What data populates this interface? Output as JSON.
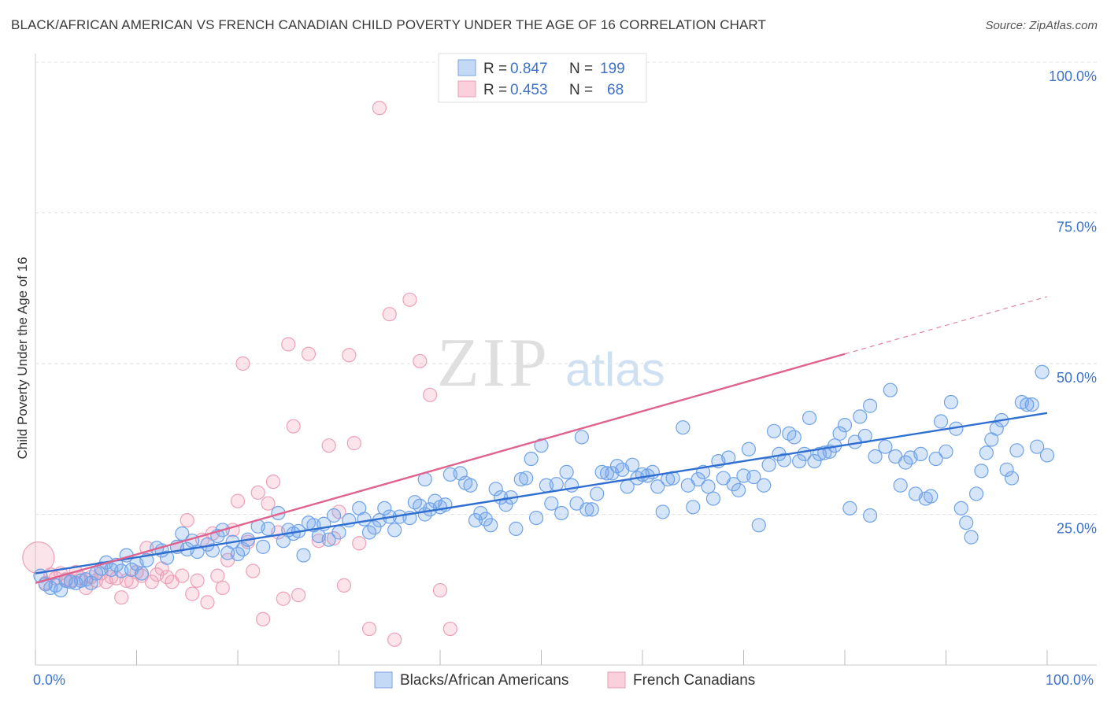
{
  "title": "BLACK/AFRICAN AMERICAN VS FRENCH CANADIAN CHILD POVERTY UNDER THE AGE OF 16 CORRELATION CHART",
  "source": "Source: ZipAtlas.com",
  "watermark": {
    "zip": "ZIP",
    "atlas": "atlas"
  },
  "colors": {
    "blue": "#6fa3e8",
    "blue_line": "#2f6fd1",
    "pink": "#f0a0b8",
    "pink_line": "#e0638f",
    "tick_text": "#3d72c9"
  },
  "legend": {
    "r_label": "R =",
    "n_label": "N =",
    "series": [
      {
        "r": "0.847",
        "n": "199"
      },
      {
        "r": "0.453",
        "n": "68"
      }
    ]
  },
  "bottom_legend": [
    "Blacks/African Americans",
    "French Canadians"
  ],
  "chart_data": {
    "type": "scatter",
    "title": "BLACK/AFRICAN AMERICAN VS FRENCH CANADIAN CHILD POVERTY UNDER THE AGE OF 16 CORRELATION CHART",
    "xlabel": "",
    "ylabel": "Child Poverty Under the Age of 16",
    "x_tick_labels": [
      "0.0%",
      "100.0%"
    ],
    "y_tick_labels": [
      "25.0%",
      "50.0%",
      "75.0%",
      "100.0%"
    ],
    "y_ticks": [
      25,
      50,
      75,
      100
    ],
    "xlim": [
      0,
      100
    ],
    "ylim": [
      0,
      100
    ],
    "series": [
      {
        "name": "Blacks/African Americans",
        "color": "blue",
        "trend": {
          "x0": 0,
          "y0": 15.2,
          "x1": 100,
          "y1": 41.8,
          "dashed_to": 100
        },
        "points": [
          [
            0.5,
            14.8
          ],
          [
            1,
            13.4
          ],
          [
            1.5,
            12.8
          ],
          [
            2,
            13.2
          ],
          [
            2.5,
            12.4
          ],
          [
            3,
            14
          ],
          [
            3.5,
            13.8
          ],
          [
            4,
            13.6
          ],
          [
            4.5,
            14
          ],
          [
            5,
            14.2
          ],
          [
            5.5,
            13.6
          ],
          [
            6,
            15.2
          ],
          [
            6.5,
            16
          ],
          [
            7,
            17
          ],
          [
            7.5,
            15.8
          ],
          [
            8,
            16.6
          ],
          [
            8.5,
            15.6
          ],
          [
            9,
            18.2
          ],
          [
            9.5,
            15.8
          ],
          [
            10,
            16.8
          ],
          [
            10.5,
            15.2
          ],
          [
            11,
            17.4
          ],
          [
            12,
            19.4
          ],
          [
            12.5,
            19
          ],
          [
            13,
            17.8
          ],
          [
            14,
            19.6
          ],
          [
            14.5,
            21.8
          ],
          [
            15,
            19.2
          ],
          [
            15.5,
            20.6
          ],
          [
            16,
            18.8
          ],
          [
            17,
            20
          ],
          [
            17.5,
            19
          ],
          [
            18,
            21.4
          ],
          [
            18.5,
            22.4
          ],
          [
            19,
            18.6
          ],
          [
            19.5,
            20.4
          ],
          [
            20,
            18.4
          ],
          [
            20.5,
            19.2
          ],
          [
            21,
            20.8
          ],
          [
            22,
            23
          ],
          [
            22.5,
            19.6
          ],
          [
            23,
            22.6
          ],
          [
            24,
            25.2
          ],
          [
            24.5,
            20.6
          ],
          [
            25,
            22.4
          ],
          [
            25.5,
            21.8
          ],
          [
            26,
            22.2
          ],
          [
            26.5,
            18.2
          ],
          [
            27,
            23.6
          ],
          [
            27.5,
            23.2
          ],
          [
            28,
            21.4
          ],
          [
            28.5,
            23.4
          ],
          [
            29,
            20.8
          ],
          [
            29.5,
            24.8
          ],
          [
            30,
            22
          ],
          [
            31,
            24
          ],
          [
            32,
            26
          ],
          [
            32.5,
            24.2
          ],
          [
            33,
            22
          ],
          [
            33.5,
            22.8
          ],
          [
            34,
            24
          ],
          [
            34.5,
            26
          ],
          [
            35,
            24.6
          ],
          [
            35.5,
            22.4
          ],
          [
            36,
            24.6
          ],
          [
            37,
            24.4
          ],
          [
            37.5,
            27
          ],
          [
            38,
            26.4
          ],
          [
            38.5,
            25
          ],
          [
            38.5,
            30.8
          ],
          [
            39,
            25.8
          ],
          [
            39.5,
            27.2
          ],
          [
            40,
            26.2
          ],
          [
            40.5,
            26.6
          ],
          [
            41,
            31.6
          ],
          [
            42,
            31.8
          ],
          [
            42.5,
            30.2
          ],
          [
            43,
            29.8
          ],
          [
            43.5,
            24
          ],
          [
            44,
            25.2
          ],
          [
            44.5,
            24.2
          ],
          [
            45,
            23.2
          ],
          [
            45.5,
            29.2
          ],
          [
            46,
            27.8
          ],
          [
            46.5,
            26.6
          ],
          [
            47,
            27.8
          ],
          [
            47.5,
            22.6
          ],
          [
            48,
            30.8
          ],
          [
            48.5,
            31
          ],
          [
            49,
            34.2
          ],
          [
            49.5,
            24.4
          ],
          [
            50,
            36.4
          ],
          [
            50.5,
            29.8
          ],
          [
            51,
            26.8
          ],
          [
            51.5,
            30
          ],
          [
            52,
            25.2
          ],
          [
            52.5,
            32
          ],
          [
            53,
            29.8
          ],
          [
            53.5,
            26.8
          ],
          [
            54,
            37.8
          ],
          [
            54.5,
            25.8
          ],
          [
            55,
            25.8
          ],
          [
            55.5,
            28.4
          ],
          [
            56,
            32
          ],
          [
            56.5,
            31.8
          ],
          [
            57,
            31.8
          ],
          [
            57.5,
            33
          ],
          [
            58,
            32.4
          ],
          [
            58.5,
            29.6
          ],
          [
            59,
            33.2
          ],
          [
            59.5,
            31
          ],
          [
            60,
            31.6
          ],
          [
            60.5,
            31.4
          ],
          [
            61,
            32
          ],
          [
            61.5,
            29.6
          ],
          [
            62,
            25.4
          ],
          [
            62.5,
            30.8
          ],
          [
            63,
            31
          ],
          [
            64,
            39.4
          ],
          [
            64.5,
            29.8
          ],
          [
            65,
            26.2
          ],
          [
            65.5,
            30.8
          ],
          [
            66,
            32
          ],
          [
            66.5,
            29.6
          ],
          [
            67,
            27.6
          ],
          [
            67.5,
            33.8
          ],
          [
            68,
            31
          ],
          [
            68.5,
            34.4
          ],
          [
            69,
            30
          ],
          [
            69.5,
            29
          ],
          [
            70,
            31.4
          ],
          [
            70.5,
            35.8
          ],
          [
            71,
            31.2
          ],
          [
            71.5,
            23.2
          ],
          [
            72,
            29.8
          ],
          [
            72.5,
            33.2
          ],
          [
            73,
            38.8
          ],
          [
            73.5,
            35
          ],
          [
            74,
            34
          ],
          [
            74.5,
            38.4
          ],
          [
            75,
            37.8
          ],
          [
            75.5,
            33.8
          ],
          [
            76,
            35
          ],
          [
            76.5,
            41
          ],
          [
            77,
            33.8
          ],
          [
            77.5,
            35
          ],
          [
            78,
            35.2
          ],
          [
            78.5,
            35.4
          ],
          [
            79,
            36.4
          ],
          [
            79.5,
            38.4
          ],
          [
            80,
            39.8
          ],
          [
            80.5,
            26
          ],
          [
            81,
            37
          ],
          [
            81.5,
            41.2
          ],
          [
            82,
            38
          ],
          [
            82.5,
            43
          ],
          [
            82.5,
            24.8
          ],
          [
            83,
            34.6
          ],
          [
            84,
            36.2
          ],
          [
            84.5,
            45.6
          ],
          [
            85,
            34.6
          ],
          [
            85.5,
            29.8
          ],
          [
            86,
            33.6
          ],
          [
            86.5,
            34.4
          ],
          [
            87,
            28.4
          ],
          [
            87.5,
            35
          ],
          [
            88,
            27.6
          ],
          [
            88.5,
            28
          ],
          [
            89,
            34.2
          ],
          [
            89.5,
            40.4
          ],
          [
            90,
            35.4
          ],
          [
            90.5,
            43.6
          ],
          [
            91,
            39.2
          ],
          [
            91.5,
            26
          ],
          [
            92,
            23.6
          ],
          [
            92.5,
            21.2
          ],
          [
            93,
            28.4
          ],
          [
            93.5,
            32.2
          ],
          [
            94,
            35.2
          ],
          [
            94.5,
            37.4
          ],
          [
            95,
            39.2
          ],
          [
            95.5,
            40.6
          ],
          [
            96,
            32.4
          ],
          [
            96.5,
            31
          ],
          [
            97,
            35.6
          ],
          [
            97.5,
            43.6
          ],
          [
            98,
            43.2
          ],
          [
            98.5,
            43.2
          ],
          [
            99,
            36.2
          ],
          [
            99.5,
            48.6
          ],
          [
            100,
            34.8
          ]
        ]
      },
      {
        "name": "French Canadians",
        "color": "pink",
        "trend": {
          "x0": 0,
          "y0": 13.6,
          "x1": 80,
          "y1": 51.6,
          "dashed_to": 100
        },
        "points": [
          [
            0.3,
            17.8
          ],
          [
            1,
            13.6
          ],
          [
            1.5,
            15
          ],
          [
            2,
            14.4
          ],
          [
            2.5,
            15.2
          ],
          [
            3,
            14.2
          ],
          [
            3.5,
            14
          ],
          [
            4,
            15.4
          ],
          [
            4.5,
            14.4
          ],
          [
            5,
            12.8
          ],
          [
            5.5,
            14.6
          ],
          [
            6,
            14
          ],
          [
            6.5,
            15.2
          ],
          [
            7,
            13.8
          ],
          [
            7.5,
            14.6
          ],
          [
            8,
            14.4
          ],
          [
            8.5,
            11.2
          ],
          [
            9,
            14
          ],
          [
            9.5,
            13.8
          ],
          [
            10,
            15.4
          ],
          [
            10.5,
            14.8
          ],
          [
            11,
            19.4
          ],
          [
            11.5,
            13.8
          ],
          [
            12,
            15
          ],
          [
            12.5,
            16
          ],
          [
            13,
            14.6
          ],
          [
            13.5,
            13.8
          ],
          [
            14,
            19.6
          ],
          [
            14.5,
            14.8
          ],
          [
            15,
            24
          ],
          [
            15.5,
            11.8
          ],
          [
            16,
            14
          ],
          [
            16.5,
            20.8
          ],
          [
            17,
            10.4
          ],
          [
            17.5,
            21.8
          ],
          [
            18,
            14.8
          ],
          [
            18.5,
            12.8
          ],
          [
            19,
            17.4
          ],
          [
            19.5,
            22.4
          ],
          [
            20,
            27.2
          ],
          [
            20.5,
            50
          ],
          [
            21,
            20.4
          ],
          [
            21.5,
            15.6
          ],
          [
            22,
            28.6
          ],
          [
            22.5,
            7.6
          ],
          [
            23,
            26.8
          ],
          [
            23.5,
            30.4
          ],
          [
            24,
            22
          ],
          [
            24.5,
            11
          ],
          [
            25,
            53.2
          ],
          [
            25.5,
            39.6
          ],
          [
            26,
            11.6
          ],
          [
            27,
            51.6
          ],
          [
            28,
            20.6
          ],
          [
            29,
            36.4
          ],
          [
            29.5,
            21
          ],
          [
            30,
            25.4
          ],
          [
            30.5,
            13.2
          ],
          [
            31,
            51.4
          ],
          [
            31.5,
            36.8
          ],
          [
            32,
            20.2
          ],
          [
            33,
            6
          ],
          [
            34,
            92.4
          ],
          [
            35,
            58.2
          ],
          [
            35.5,
            4.2
          ],
          [
            37,
            60.6
          ],
          [
            38,
            50.4
          ],
          [
            39,
            44.8
          ],
          [
            40,
            12.4
          ],
          [
            41,
            6
          ]
        ]
      }
    ]
  }
}
